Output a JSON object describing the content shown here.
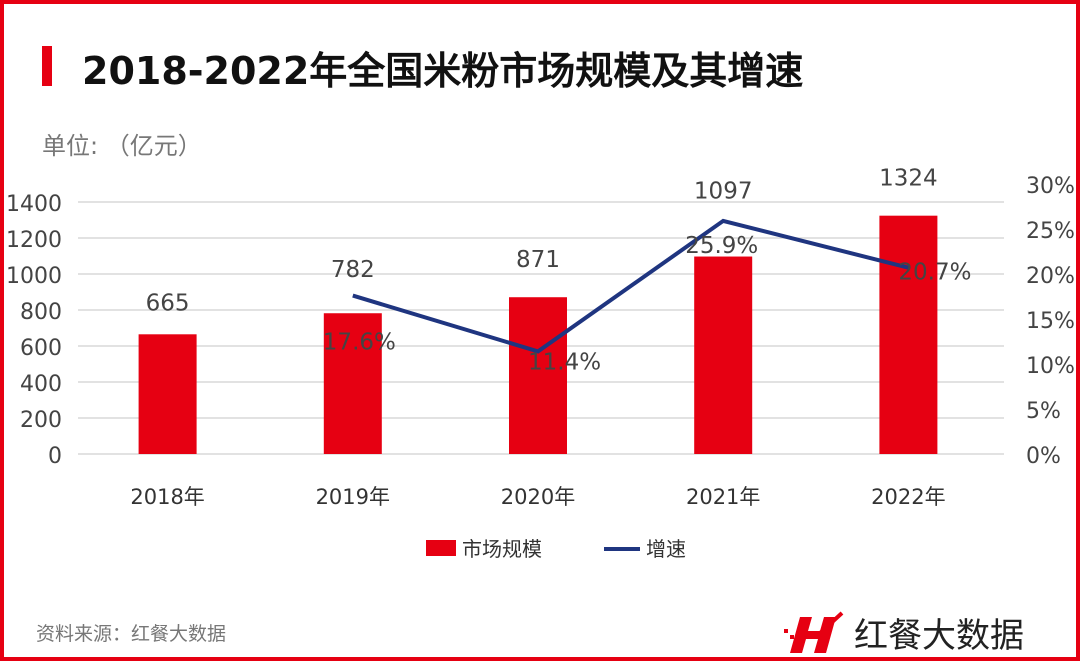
{
  "title": "2018-2022年全国米粉市场规模及其增速",
  "unit_label": "单位: （亿元）",
  "source": "资料来源：红餐大数据",
  "logo_text": "红餐大数据",
  "chart_data": {
    "type": "bar",
    "categories": [
      "2018年",
      "2019年",
      "2020年",
      "2021年",
      "2022年"
    ],
    "series": [
      {
        "name": "市场规模",
        "type": "bar",
        "axis": "left",
        "values": [
          665,
          782,
          871,
          1097,
          1324
        ],
        "labels": [
          "665",
          "782",
          "871",
          "1097",
          "1324"
        ],
        "color": "#e60012"
      },
      {
        "name": "增速",
        "type": "line",
        "axis": "right",
        "values": [
          null,
          17.6,
          11.4,
          25.9,
          20.7
        ],
        "labels": [
          "",
          "17.6%",
          "11.4%",
          "25.9%",
          "20.7%"
        ],
        "color": "#1f3580"
      }
    ],
    "left_axis": {
      "ylim": [
        0,
        1500
      ],
      "ticks": [
        0,
        200,
        400,
        600,
        800,
        1000,
        1200,
        1400
      ]
    },
    "right_axis": {
      "ylim": [
        0,
        30
      ],
      "ticks": [
        "0%",
        "5%",
        "10%",
        "15%",
        "20%",
        "25%",
        "30%"
      ]
    },
    "grid": true,
    "legend_placement": "bottom"
  }
}
